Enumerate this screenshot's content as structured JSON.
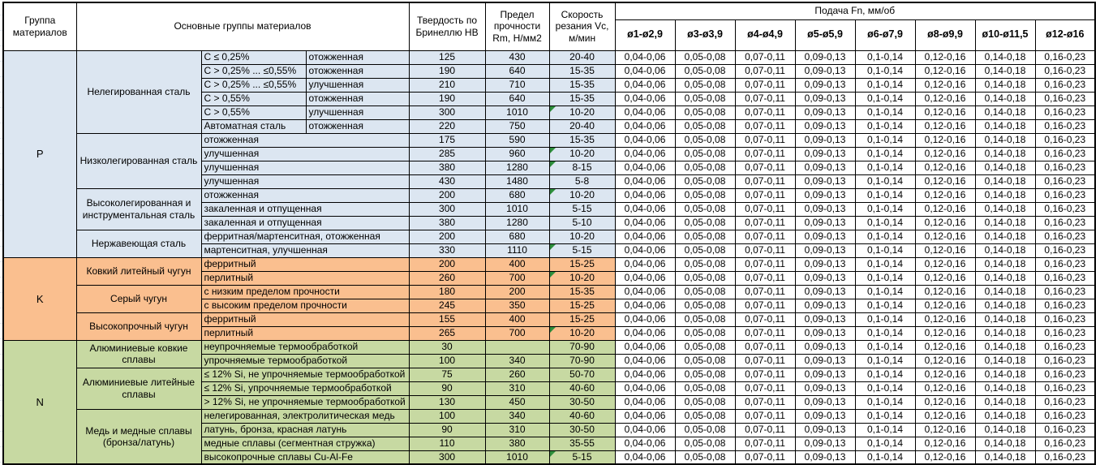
{
  "header": {
    "col_group": "Группа материалов",
    "col_main_groups": "Основные группы материалов",
    "col_hardness": "Твердость по Бринеллю HB",
    "col_strength": "Предел прочности Rm, Н/мм2",
    "col_speed": "Скорость резания Vc, м/мин"
  },
  "feed": {
    "title": "Подача Fn, мм/об",
    "columns": [
      "ø1-ø2,9",
      "ø3-ø3,9",
      "ø4-ø4,9",
      "ø5-ø5,9",
      "ø6-ø7,9",
      "ø8-ø9,9",
      "ø10-ø11,5",
      "ø12-ø16"
    ],
    "values": [
      "0,04-0,06",
      "0,05-0,08",
      "0,07-0,11",
      "0,09-0,13",
      "0,1-0,14",
      "0,12-0,16",
      "0,14-0,18",
      "0,16-0,23"
    ],
    "note": "identical feed range values repeat on every material row"
  },
  "groups": [
    {
      "letter": "P",
      "subgroups": [
        {
          "name": "Нелегированная сталь",
          "rows": [
            {
              "spec": "C ≤ 0,25%",
              "state": "отожженная",
              "hb": "125",
              "rm": "430",
              "vc": "20-40",
              "marker": false
            },
            {
              "spec": "C > 0,25% ... ≤0,55%",
              "state": "отожженная",
              "hb": "190",
              "rm": "640",
              "vc": "15-35",
              "marker": false
            },
            {
              "spec": "C > 0,25% ... ≤0,55%",
              "state": "улучшенная",
              "hb": "210",
              "rm": "710",
              "vc": "15-35",
              "marker": false
            },
            {
              "spec": "C > 0,55%",
              "state": "отожженная",
              "hb": "190",
              "rm": "640",
              "vc": "15-35",
              "marker": false
            },
            {
              "spec": "C > 0,55%",
              "state": "улучшенная",
              "hb": "300",
              "rm": "1010",
              "vc": "10-20",
              "marker": true
            },
            {
              "spec": "Автоматная сталь",
              "state": "отожженная",
              "hb": "220",
              "rm": "750",
              "vc": "20-40",
              "marker": false
            }
          ]
        },
        {
          "name": "Низколегированная сталь",
          "rows": [
            {
              "desc": "отожженная",
              "hb": "175",
              "rm": "590",
              "vc": "15-35",
              "marker": false
            },
            {
              "desc": "улучшенная",
              "hb": "285",
              "rm": "960",
              "vc": "10-20",
              "marker": true
            },
            {
              "desc": "улучшенная",
              "hb": "380",
              "rm": "1280",
              "vc": "8-15",
              "marker": true
            },
            {
              "desc": "улучшенная",
              "hb": "430",
              "rm": "1480",
              "vc": "5-8",
              "marker": false
            }
          ]
        },
        {
          "name": "Высоколегированная и инструментальная сталь",
          "rows": [
            {
              "desc": "отожженная",
              "hb": "200",
              "rm": "680",
              "vc": "10-20",
              "marker": true
            },
            {
              "desc": "закаленная и отпущенная",
              "hb": "300",
              "rm": "1010",
              "vc": "5-15",
              "marker": false
            },
            {
              "desc": "закаленная и отпущенная",
              "hb": "380",
              "rm": "1280",
              "vc": "5-10",
              "marker": false
            }
          ]
        },
        {
          "name": "Нержавеющая сталь",
          "rows": [
            {
              "desc": "ферритная/мартенситная, отожженная",
              "hb": "200",
              "rm": "680",
              "vc": "10-20",
              "marker": false
            },
            {
              "desc": "мартенситная, улучшенная",
              "hb": "330",
              "rm": "1110",
              "vc": "5-15",
              "marker": true
            }
          ]
        }
      ]
    },
    {
      "letter": "K",
      "subgroups": [
        {
          "name": "Ковкий литейный чугун",
          "rows": [
            {
              "desc": "ферритный",
              "hb": "200",
              "rm": "400",
              "vc": "15-25",
              "marker": false
            },
            {
              "desc": "перлитный",
              "hb": "260",
              "rm": "700",
              "vc": "10-20",
              "marker": true
            }
          ]
        },
        {
          "name": "Серый чугун",
          "rows": [
            {
              "desc": "с низким пределом прочности",
              "hb": "180",
              "rm": "200",
              "vc": "15-35",
              "marker": false
            },
            {
              "desc": "с высоким пределом прочности",
              "hb": "245",
              "rm": "350",
              "vc": "15-25",
              "marker": false
            }
          ]
        },
        {
          "name": "Высокопрочный чугун",
          "rows": [
            {
              "desc": "ферритный",
              "hb": "155",
              "rm": "400",
              "vc": "15-25",
              "marker": false
            },
            {
              "desc": "перлитный",
              "hb": "265",
              "rm": "700",
              "vc": "10-20",
              "marker": true
            }
          ]
        }
      ]
    },
    {
      "letter": "N",
      "subgroups": [
        {
          "name": "Алюминиевые ковкие сплавы",
          "rows": [
            {
              "desc": "неупрочняемые термообработкой",
              "hb": "30",
              "rm": "",
              "vc": "70-90",
              "marker": false
            },
            {
              "desc": "упрочняемые термообработкой",
              "hb": "100",
              "rm": "340",
              "vc": "70-90",
              "marker": false
            }
          ]
        },
        {
          "name": "Алюминиевые литейные сплавы",
          "rows": [
            {
              "desc": "≤ 12% Si, не упрочняемые термообработкой",
              "hb": "75",
              "rm": "260",
              "vc": "50-70",
              "marker": false
            },
            {
              "desc": "≤ 12% Si, упрочняемые термообработкой",
              "hb": "90",
              "rm": "310",
              "vc": "40-60",
              "marker": false
            },
            {
              "desc": "> 12% Si, не упрочняемые термообработкой",
              "hb": "130",
              "rm": "450",
              "vc": "30-50",
              "marker": false
            }
          ]
        },
        {
          "name": "Медь и медные сплавы (бронза/латунь)",
          "rows": [
            {
              "desc": "нелегированная, электролитическая медь",
              "hb": "100",
              "rm": "340",
              "vc": "40-60",
              "marker": false
            },
            {
              "desc": "латунь, бронза, красная латунь",
              "hb": "90",
              "rm": "310",
              "vc": "30-50",
              "marker": false
            },
            {
              "desc": "медные сплавы (сегментная стружка)",
              "hb": "110",
              "rm": "380",
              "vc": "35-55",
              "marker": false
            },
            {
              "desc": "высокопрочные сплавы Cu-Al-Fe",
              "hb": "300",
              "rm": "1010",
              "vc": "5-15",
              "marker": true
            }
          ]
        }
      ]
    }
  ],
  "colors": {
    "group_p": "#dce6f1",
    "group_k": "#fabf8f",
    "group_n": "#c7d9a2",
    "marker": "#2e8f3c",
    "border": "#000000"
  }
}
